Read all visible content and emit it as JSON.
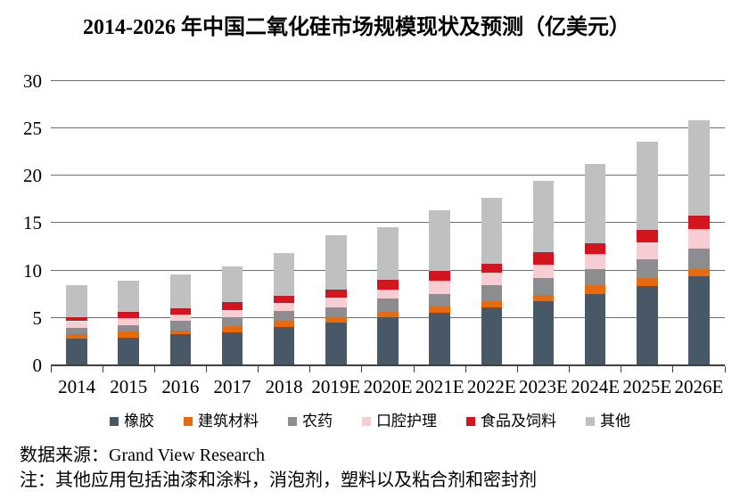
{
  "title": "2014-2026 年中国二氧化硅市场规模现状及预测（亿美元）",
  "chart_data": {
    "type": "bar",
    "stacked": true,
    "title": "2014-2026 年中国二氧化硅市场规模现状及预测（亿美元）",
    "unit": "亿美元",
    "categories": [
      "2014",
      "2015",
      "2016",
      "2017",
      "2018",
      "2019E",
      "2020E",
      "2021E",
      "2022E",
      "2023E",
      "2024E",
      "2025E",
      "2026E"
    ],
    "series": [
      {
        "name": "橡胶",
        "color": "#485867",
        "values": [
          2.8,
          2.9,
          3.2,
          3.4,
          4.0,
          4.5,
          5.05,
          5.45,
          6.1,
          6.7,
          7.45,
          8.35,
          9.3
        ]
      },
      {
        "name": "建筑材料",
        "color": "#E56A10",
        "values": [
          0.4,
          0.6,
          0.45,
          0.7,
          0.65,
          0.55,
          0.55,
          0.7,
          0.6,
          0.65,
          0.95,
          0.8,
          0.8
        ]
      },
      {
        "name": "农药",
        "color": "#8B8D8F",
        "values": [
          0.65,
          0.7,
          1.0,
          0.9,
          1.0,
          1.0,
          1.35,
          1.35,
          1.7,
          1.8,
          1.7,
          2.0,
          2.2
        ]
      },
      {
        "name": "口腔护理",
        "color": "#F6CDD3",
        "values": [
          0.75,
          0.75,
          0.7,
          0.75,
          0.9,
          1.0,
          1.0,
          1.35,
          1.3,
          1.45,
          1.55,
          1.8,
          2.05
        ]
      },
      {
        "name": "食品及饲料",
        "color": "#D2151F",
        "values": [
          0.45,
          0.65,
          0.65,
          0.85,
          0.7,
          0.85,
          1.05,
          1.05,
          1.0,
          1.25,
          1.2,
          1.3,
          1.35
        ]
      },
      {
        "name": "其他",
        "color": "#BFC0C2",
        "values": [
          3.35,
          3.3,
          3.5,
          3.75,
          4.55,
          5.75,
          5.5,
          6.35,
          6.9,
          7.5,
          8.35,
          9.3,
          10.05
        ]
      }
    ],
    "totals": [
      8.4,
      8.9,
      9.5,
      10.35,
      11.8,
      13.65,
      14.5,
      16.25,
      17.6,
      19.35,
      21.2,
      23.55,
      25.75
    ],
    "xlabel": "",
    "ylabel": "",
    "ylim": [
      0,
      30
    ],
    "yticks": [
      0,
      5,
      10,
      15,
      20,
      25,
      30
    ],
    "grid": true,
    "gridlines_behind_bars": true,
    "legend_position": "bottom"
  },
  "footer": {
    "source_label": "数据来源：Grand View Research",
    "note": "注：其他应用包括油漆和涂料，消泡剂，塑料以及粘合剂和密封剂"
  },
  "style": {
    "background": "#FFFFFF",
    "text_color": "#000000",
    "grid_color": "#6F6F6F",
    "axis_color": "#404040"
  }
}
